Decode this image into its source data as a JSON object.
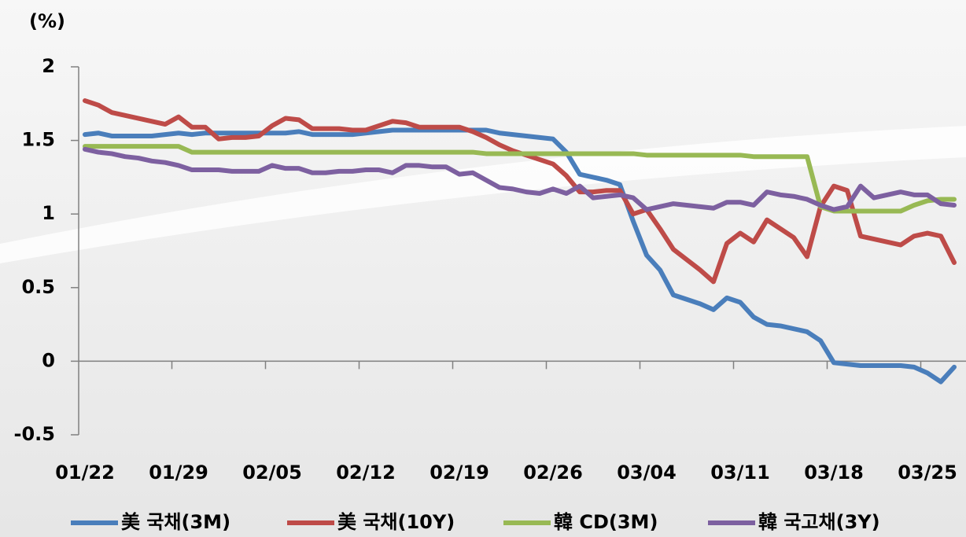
{
  "chart_data": {
    "type": "line",
    "y_axis_label": "(%)",
    "categories": [
      "01/22",
      null,
      null,
      null,
      null,
      null,
      null,
      "01/29",
      null,
      null,
      null,
      null,
      null,
      null,
      "02/05",
      null,
      null,
      null,
      null,
      null,
      null,
      "02/12",
      null,
      null,
      null,
      null,
      null,
      null,
      "02/19",
      null,
      null,
      null,
      null,
      null,
      null,
      "02/26",
      null,
      null,
      null,
      null,
      null,
      null,
      "03/04",
      null,
      null,
      null,
      null,
      null,
      null,
      "03/11",
      null,
      null,
      null,
      null,
      null,
      null,
      "03/18",
      null,
      null,
      null,
      null,
      null,
      null,
      "03/25",
      null,
      null
    ],
    "series": [
      {
        "name": "美 국채(3M)",
        "color": "#4a7ebb",
        "values": [
          1.54,
          1.55,
          1.53,
          1.53,
          1.53,
          1.53,
          1.54,
          1.55,
          1.54,
          1.55,
          1.55,
          1.55,
          1.55,
          1.55,
          1.55,
          1.55,
          1.56,
          1.54,
          1.54,
          1.54,
          1.54,
          1.55,
          1.56,
          1.57,
          1.57,
          1.57,
          1.57,
          1.57,
          1.57,
          1.57,
          1.57,
          1.55,
          1.54,
          1.53,
          1.52,
          1.51,
          1.42,
          1.27,
          1.25,
          1.23,
          1.2,
          0.95,
          0.72,
          0.62,
          0.45,
          0.42,
          0.39,
          0.35,
          0.43,
          0.4,
          0.3,
          0.25,
          0.24,
          0.22,
          0.2,
          0.14,
          -0.01,
          -0.02,
          -0.03,
          -0.03,
          -0.03,
          -0.03,
          -0.04,
          -0.08,
          -0.14,
          -0.04
        ]
      },
      {
        "name": "美 국채(10Y)",
        "color": "#be4b48",
        "values": [
          1.77,
          1.74,
          1.69,
          1.67,
          1.65,
          1.63,
          1.61,
          1.66,
          1.59,
          1.59,
          1.51,
          1.52,
          1.52,
          1.53,
          1.6,
          1.65,
          1.64,
          1.58,
          1.58,
          1.58,
          1.57,
          1.57,
          1.6,
          1.63,
          1.62,
          1.59,
          1.59,
          1.59,
          1.59,
          1.56,
          1.52,
          1.47,
          1.43,
          1.4,
          1.37,
          1.34,
          1.26,
          1.15,
          1.15,
          1.16,
          1.16,
          1.0,
          1.03,
          0.9,
          0.76,
          0.69,
          0.62,
          0.54,
          0.8,
          0.87,
          0.81,
          0.96,
          0.9,
          0.84,
          0.71,
          1.05,
          1.19,
          1.16,
          0.85,
          0.83,
          0.81,
          0.79,
          0.85,
          0.87,
          0.85,
          0.67
        ]
      },
      {
        "name": "韓 CD(3M)",
        "color": "#98b954",
        "values": [
          1.46,
          1.46,
          1.46,
          1.46,
          1.46,
          1.46,
          1.46,
          1.46,
          1.42,
          1.42,
          1.42,
          1.42,
          1.42,
          1.42,
          1.42,
          1.42,
          1.42,
          1.42,
          1.42,
          1.42,
          1.42,
          1.42,
          1.42,
          1.42,
          1.42,
          1.42,
          1.42,
          1.42,
          1.42,
          1.42,
          1.41,
          1.41,
          1.41,
          1.41,
          1.41,
          1.41,
          1.41,
          1.41,
          1.41,
          1.41,
          1.41,
          1.41,
          1.4,
          1.4,
          1.4,
          1.4,
          1.4,
          1.4,
          1.4,
          1.4,
          1.39,
          1.39,
          1.39,
          1.39,
          1.39,
          1.05,
          1.02,
          1.02,
          1.02,
          1.02,
          1.02,
          1.02,
          1.06,
          1.09,
          1.1,
          1.1
        ]
      },
      {
        "name": "韓 국고채(3Y)",
        "color": "#7d60a0",
        "values": [
          1.44,
          1.42,
          1.41,
          1.39,
          1.38,
          1.36,
          1.35,
          1.33,
          1.3,
          1.3,
          1.3,
          1.29,
          1.29,
          1.29,
          1.33,
          1.31,
          1.31,
          1.28,
          1.28,
          1.29,
          1.29,
          1.3,
          1.3,
          1.28,
          1.33,
          1.33,
          1.32,
          1.32,
          1.27,
          1.28,
          1.23,
          1.18,
          1.17,
          1.15,
          1.14,
          1.17,
          1.14,
          1.19,
          1.11,
          1.12,
          1.13,
          1.11,
          1.03,
          1.05,
          1.07,
          1.06,
          1.05,
          1.04,
          1.08,
          1.08,
          1.06,
          1.15,
          1.13,
          1.12,
          1.1,
          1.06,
          1.03,
          1.05,
          1.19,
          1.11,
          1.13,
          1.15,
          1.13,
          1.13,
          1.07,
          1.06
        ]
      }
    ],
    "ylim": [
      -0.5,
      2
    ],
    "yticks": [
      -0.5,
      0,
      0.5,
      1,
      1.5,
      2
    ],
    "grid": false,
    "legend": "bottom"
  }
}
